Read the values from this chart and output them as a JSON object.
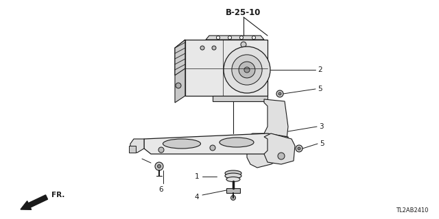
{
  "bg_color": "#ffffff",
  "line_color": "#1a1a1a",
  "title_ref": "B-25-10",
  "footer_text": "TL2AB2410",
  "figsize": [
    6.4,
    3.2
  ],
  "dpi": 100
}
